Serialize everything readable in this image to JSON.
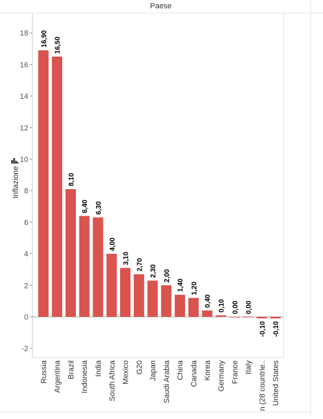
{
  "chart_data": {
    "type": "bar",
    "title": "Paese",
    "ylabel": "Inflazione",
    "ylim": [
      -2.4,
      19
    ],
    "yticks": [
      -2,
      0,
      2,
      4,
      6,
      8,
      10,
      12,
      14,
      16,
      18
    ],
    "categories": [
      "Russia",
      "Argentina",
      "Brazil",
      "Indonesia",
      "India",
      "South Africa",
      "Mexico",
      "G20",
      "Japan",
      "Saudi Arabia",
      "China",
      "Canada",
      "Korea",
      "Germany",
      "France",
      "Italy",
      "n (28 countrie..",
      "United States"
    ],
    "values": [
      16.9,
      16.5,
      8.1,
      6.4,
      6.3,
      4.0,
      3.1,
      2.7,
      2.3,
      2.0,
      1.4,
      1.2,
      0.4,
      0.1,
      0.0,
      0.0,
      -0.1,
      -0.1
    ],
    "data_labels": [
      "16,90",
      "16,50",
      "8,10",
      "6,40",
      "6,30",
      "4,00",
      "3,10",
      "2,70",
      "2,30",
      "2,00",
      "1,40",
      "1,20",
      "0,40",
      "0,10",
      "0,00",
      "0,00",
      "-0,10",
      "-0,10"
    ],
    "bar_color": "#d9534f",
    "grid": false,
    "legend": "none"
  }
}
